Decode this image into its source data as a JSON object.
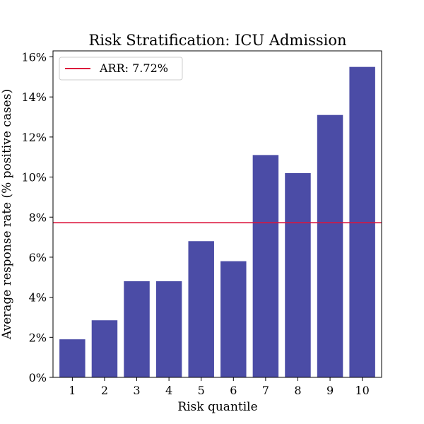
{
  "chart_data": {
    "type": "bar",
    "title": "Risk Stratification: ICU Admission",
    "xlabel": "Risk quantile",
    "ylabel": "Average response rate (% positive cases)",
    "categories": [
      "1",
      "2",
      "3",
      "4",
      "5",
      "6",
      "7",
      "8",
      "9",
      "10"
    ],
    "values": [
      1.9,
      2.85,
      4.8,
      4.8,
      6.8,
      5.8,
      11.1,
      10.2,
      13.1,
      15.5
    ],
    "ylim": [
      0,
      16.3
    ],
    "yticks": [
      0,
      2,
      4,
      6,
      8,
      10,
      12,
      14,
      16
    ],
    "ytick_labels": [
      "0%",
      "2%",
      "4%",
      "6%",
      "8%",
      "10%",
      "12%",
      "14%",
      "16%"
    ],
    "reference_line": {
      "value": 7.72,
      "label": "ARR: 7.72%"
    },
    "legend_position": "upper-left",
    "grid": false,
    "colors": {
      "bar": "#4b4ca6",
      "reference_line": "#dc143c",
      "axis": "#000000"
    }
  }
}
